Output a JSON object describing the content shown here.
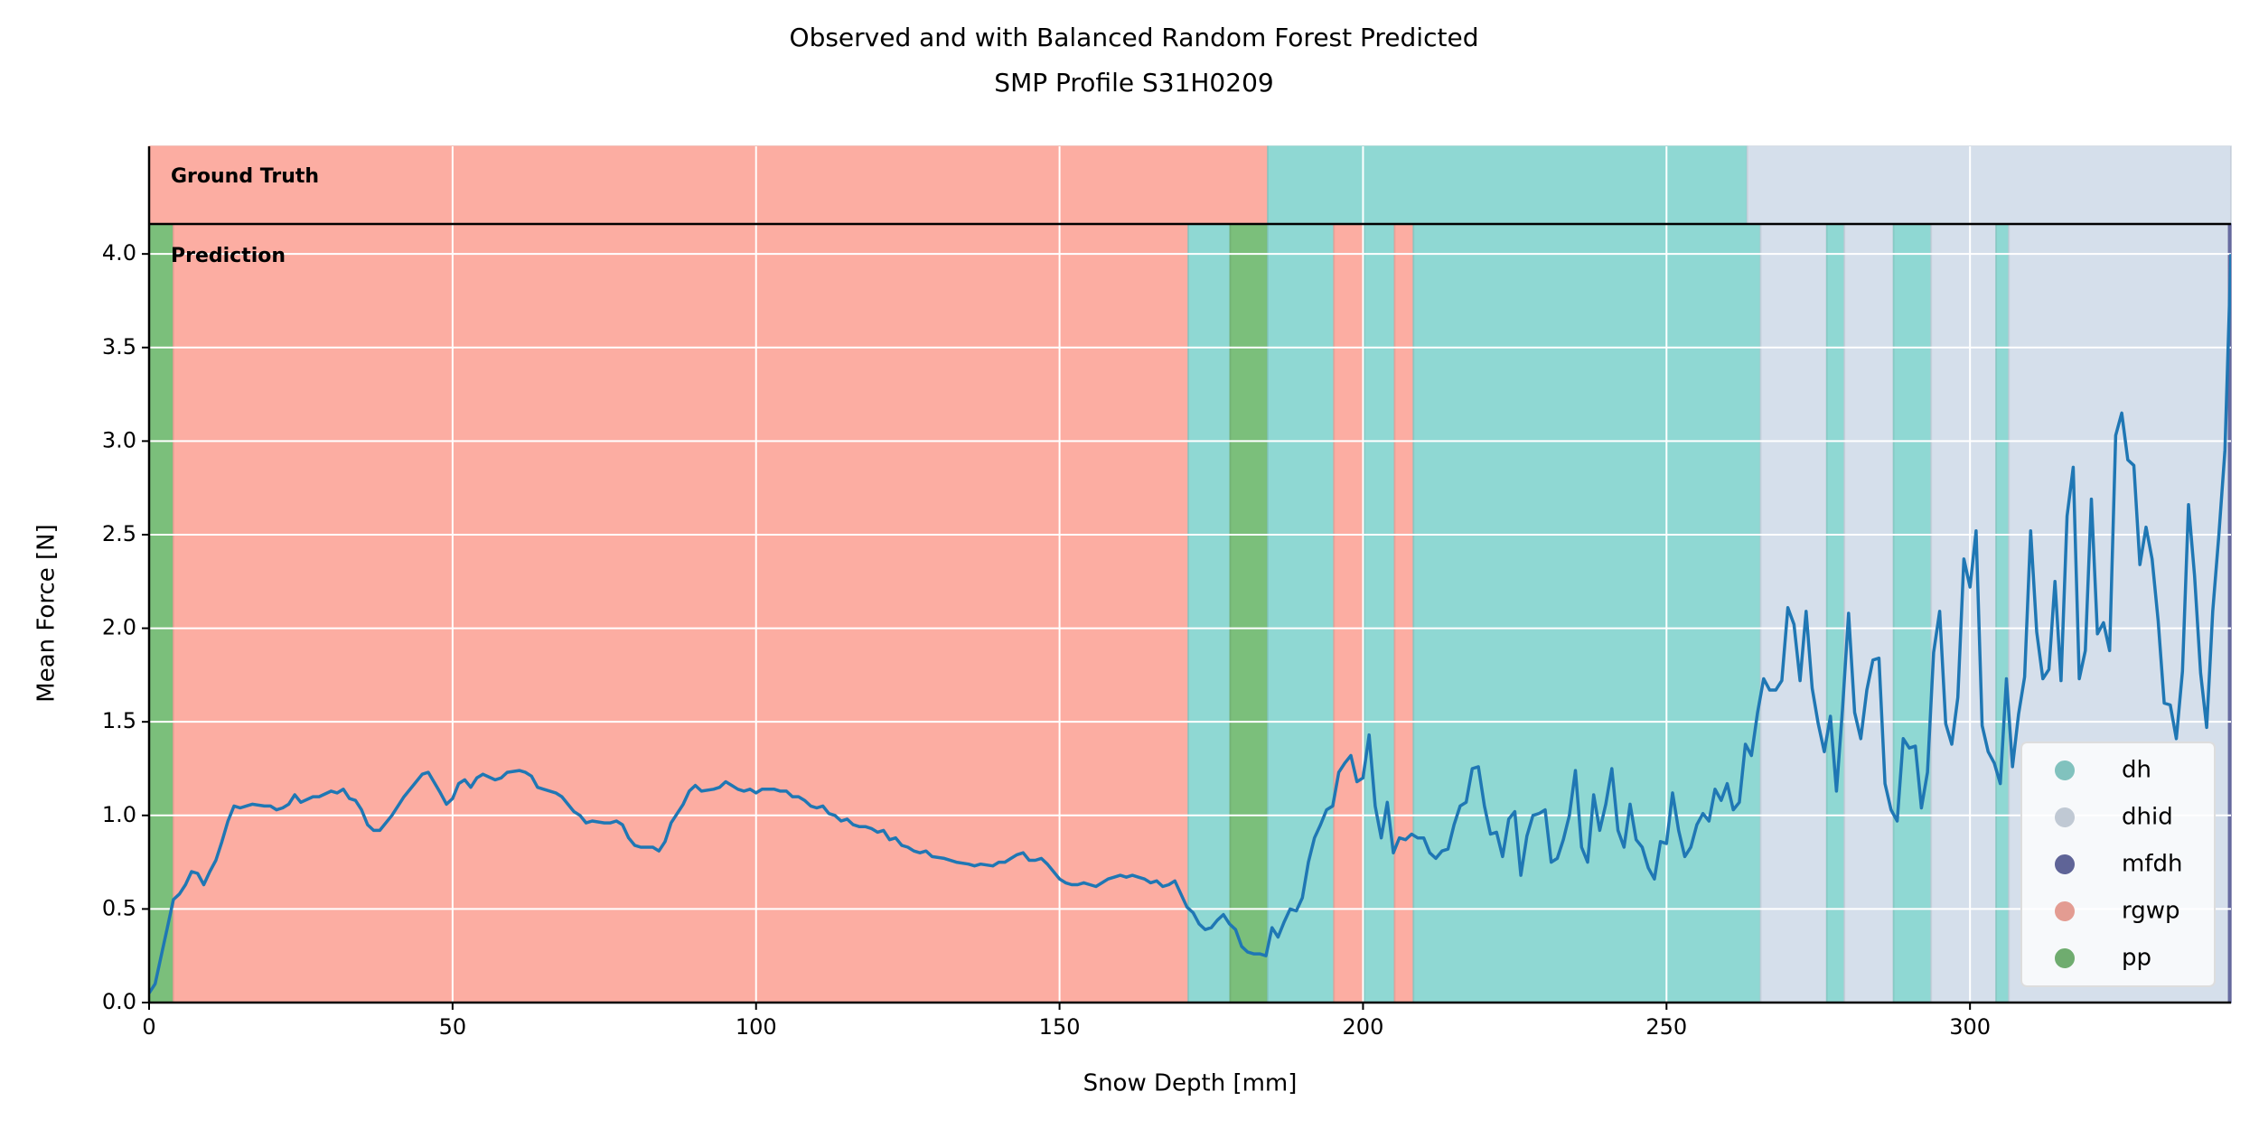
{
  "chart_data": {
    "type": "line",
    "title": [
      "Observed and with Balanced Random Forest Predicted",
      "SMP Profile S31H0209"
    ],
    "x_label": "Snow Depth [mm]",
    "y_label": "Mean Force [N]",
    "panel_labels": [
      "Ground Truth",
      "Prediction"
    ],
    "xlim": [
      0,
      343
    ],
    "ylim": [
      0,
      4.16
    ],
    "xticks": [
      0,
      50,
      100,
      150,
      200,
      250,
      300
    ],
    "yticks": [
      {
        "value": 0,
        "label": "0.0"
      },
      0.5,
      {
        "value": 1,
        "label": "1.0"
      },
      1.5,
      {
        "value": 2,
        "label": "2.0"
      },
      2.5,
      {
        "value": 3,
        "label": "3.0"
      },
      3.5,
      {
        "value": 4,
        "label": "4.0"
      }
    ],
    "grid": true,
    "grid_color": "#ffffff",
    "legend_loc": "lower right",
    "line_color": "#1f77b4",
    "classes": [
      {
        "name": "dh",
        "color": "#8fd8d3"
      },
      {
        "name": "dhid",
        "color": "#d5dfeb"
      },
      {
        "name": "mfdh",
        "color": "#6a6fa8"
      },
      {
        "name": "rgwp",
        "color": "#fcada2"
      },
      {
        "name": "pp",
        "color": "#7bbf7b"
      }
    ],
    "ground_truth": [
      {
        "class": 3,
        "start": 0,
        "end": 184.3
      },
      {
        "class": 0,
        "start": 184.3,
        "end": 263.3
      },
      {
        "class": 1,
        "start": 263.3,
        "end": 343
      }
    ],
    "prediction": [
      {
        "class": 4,
        "start": 0,
        "end": 4
      },
      {
        "class": 3,
        "start": 4,
        "end": 171.2
      },
      {
        "class": 0,
        "start": 171.2,
        "end": 178.1
      },
      {
        "class": 4,
        "start": 178.1,
        "end": 184.3
      },
      {
        "class": 0,
        "start": 184.3,
        "end": 195.2
      },
      {
        "class": 3,
        "start": 195.2,
        "end": 200.2
      },
      {
        "class": 0,
        "start": 200.2,
        "end": 205.2
      },
      {
        "class": 3,
        "start": 205.2,
        "end": 208.3
      },
      {
        "class": 0,
        "start": 208.3,
        "end": 265.5
      },
      {
        "class": 1,
        "start": 265.5,
        "end": 276.4
      },
      {
        "class": 0,
        "start": 276.4,
        "end": 279.3
      },
      {
        "class": 1,
        "start": 279.3,
        "end": 287.4
      },
      {
        "class": 0,
        "start": 287.4,
        "end": 293.6
      },
      {
        "class": 1,
        "start": 293.6,
        "end": 304.3
      },
      {
        "class": 0,
        "start": 304.3,
        "end": 306.4
      },
      {
        "class": 1,
        "start": 306.4,
        "end": 342.6
      },
      {
        "class": 2,
        "start": 342.6,
        "end": 343
      }
    ],
    "x": [
      0,
      1,
      2,
      3,
      4,
      5,
      6,
      7,
      8,
      9,
      10,
      11,
      12,
      13,
      14,
      15,
      16,
      17,
      19,
      20,
      21,
      22,
      23,
      24,
      25,
      27,
      28,
      30,
      31,
      32,
      33,
      34,
      35,
      36,
      37,
      38,
      40,
      42,
      44,
      45,
      46,
      48,
      49,
      50,
      51,
      52,
      53,
      54,
      55,
      57,
      58,
      59,
      61,
      62,
      63,
      64,
      65,
      67,
      68,
      69,
      70,
      71,
      72,
      73,
      75,
      76,
      77,
      78,
      79,
      80,
      81,
      83,
      84,
      85,
      86,
      88,
      89,
      90,
      91,
      93,
      94,
      95,
      96,
      97,
      98,
      99,
      100,
      101,
      103,
      104,
      105,
      106,
      107,
      108,
      109,
      110,
      111,
      112,
      113,
      114,
      115,
      116,
      117,
      118,
      119,
      120,
      121,
      122,
      123,
      124,
      125,
      126,
      127,
      128,
      129,
      131,
      133,
      135,
      136,
      137,
      139,
      140,
      141,
      142,
      143,
      144,
      145,
      146,
      147,
      148,
      149,
      150,
      151,
      152,
      153,
      154,
      155,
      156,
      157,
      158,
      159,
      160,
      161,
      162,
      163,
      164,
      165,
      166,
      167,
      168,
      169,
      170,
      171,
      172,
      173,
      174,
      175,
      176,
      177,
      178,
      179,
      180,
      181,
      182,
      183,
      184,
      185,
      186,
      187,
      188,
      189,
      190,
      191,
      192,
      193,
      194,
      195,
      196,
      197,
      198,
      199,
      200,
      201,
      202,
      203,
      204,
      205,
      206,
      207,
      208,
      209,
      210,
      211,
      212,
      213,
      214,
      215,
      216,
      217,
      218,
      219,
      220,
      221,
      222,
      223,
      224,
      225,
      226,
      227,
      228,
      229,
      230,
      231,
      232,
      233,
      234,
      235,
      236,
      237,
      238,
      239,
      240,
      241,
      242,
      243,
      244,
      245,
      246,
      247,
      248,
      249,
      250,
      251,
      252,
      253,
      254,
      255,
      256,
      257,
      258,
      259,
      260,
      261,
      262,
      263,
      264,
      265,
      266,
      267,
      268,
      269,
      270,
      271,
      272,
      273,
      274,
      275,
      276,
      277,
      278,
      279,
      280,
      281,
      282,
      283,
      284,
      285,
      286,
      287,
      288,
      289,
      290,
      291,
      292,
      293,
      294,
      295,
      296,
      297,
      298,
      299,
      300,
      301,
      302,
      303,
      304,
      305,
      306,
      307,
      308,
      309,
      310,
      311,
      312,
      313,
      314,
      315,
      316,
      317,
      318,
      319,
      320,
      321,
      322,
      323,
      324,
      325,
      326,
      327,
      328,
      329,
      330,
      331,
      332,
      333,
      334,
      335,
      336,
      337,
      338,
      339,
      340,
      341,
      342,
      343
    ],
    "values": [
      0.05,
      0.1,
      0.25,
      0.4,
      0.55,
      0.58,
      0.63,
      0.7,
      0.69,
      0.63,
      0.7,
      0.76,
      0.86,
      0.97,
      1.05,
      1.04,
      1.05,
      1.06,
      1.05,
      1.05,
      1.03,
      1.04,
      1.06,
      1.11,
      1.07,
      1.1,
      1.1,
      1.13,
      1.12,
      1.14,
      1.09,
      1.08,
      1.03,
      0.95,
      0.92,
      0.92,
      1.0,
      1.1,
      1.18,
      1.22,
      1.23,
      1.12,
      1.06,
      1.09,
      1.17,
      1.19,
      1.15,
      1.2,
      1.22,
      1.19,
      1.2,
      1.23,
      1.24,
      1.23,
      1.21,
      1.15,
      1.14,
      1.12,
      1.1,
      1.06,
      1.02,
      1.0,
      0.96,
      0.97,
      0.96,
      0.96,
      0.97,
      0.95,
      0.88,
      0.84,
      0.83,
      0.83,
      0.81,
      0.86,
      0.96,
      1.06,
      1.13,
      1.16,
      1.13,
      1.14,
      1.15,
      1.18,
      1.16,
      1.14,
      1.13,
      1.14,
      1.12,
      1.14,
      1.14,
      1.13,
      1.13,
      1.1,
      1.1,
      1.08,
      1.05,
      1.04,
      1.05,
      1.01,
      1.0,
      0.97,
      0.98,
      0.95,
      0.94,
      0.94,
      0.93,
      0.91,
      0.92,
      0.87,
      0.88,
      0.84,
      0.83,
      0.81,
      0.8,
      0.81,
      0.78,
      0.77,
      0.75,
      0.74,
      0.73,
      0.74,
      0.73,
      0.75,
      0.75,
      0.77,
      0.79,
      0.8,
      0.76,
      0.76,
      0.77,
      0.74,
      0.7,
      0.66,
      0.64,
      0.63,
      0.63,
      0.64,
      0.63,
      0.62,
      0.64,
      0.66,
      0.67,
      0.68,
      0.67,
      0.68,
      0.67,
      0.66,
      0.64,
      0.65,
      0.62,
      0.63,
      0.65,
      0.58,
      0.51,
      0.48,
      0.42,
      0.39,
      0.4,
      0.44,
      0.47,
      0.42,
      0.39,
      0.3,
      0.27,
      0.26,
      0.26,
      0.25,
      0.4,
      0.35,
      0.43,
      0.5,
      0.49,
      0.56,
      0.75,
      0.88,
      0.95,
      1.03,
      1.05,
      1.23,
      1.28,
      1.32,
      1.18,
      1.2,
      1.43,
      1.05,
      0.88,
      1.07,
      0.8,
      0.88,
      0.87,
      0.9,
      0.88,
      0.88,
      0.8,
      0.77,
      0.81,
      0.82,
      0.95,
      1.05,
      1.07,
      1.25,
      1.26,
      1.05,
      0.9,
      0.91,
      0.78,
      0.98,
      1.02,
      0.68,
      0.89,
      1.0,
      1.01,
      1.03,
      0.75,
      0.77,
      0.87,
      1.0,
      1.24,
      0.83,
      0.75,
      1.11,
      0.92,
      1.06,
      1.25,
      0.92,
      0.83,
      1.06,
      0.87,
      0.83,
      0.72,
      0.66,
      0.86,
      0.85,
      1.12,
      0.92,
      0.78,
      0.83,
      0.95,
      1.01,
      0.97,
      1.14,
      1.08,
      1.17,
      1.03,
      1.07,
      1.38,
      1.32,
      1.55,
      1.73,
      1.67,
      1.67,
      1.72,
      2.11,
      2.02,
      1.72,
      2.09,
      1.68,
      1.49,
      1.34,
      1.53,
      1.13,
      1.57,
      2.08,
      1.55,
      1.41,
      1.67,
      1.83,
      1.84,
      1.17,
      1.03,
      0.97,
      1.41,
      1.36,
      1.37,
      1.04,
      1.23,
      1.87,
      2.09,
      1.49,
      1.38,
      1.63,
      2.37,
      2.22,
      2.52,
      1.48,
      1.34,
      1.28,
      1.17,
      1.73,
      1.26,
      1.54,
      1.74,
      2.52,
      1.98,
      1.73,
      1.78,
      2.25,
      1.72,
      2.6,
      2.86,
      1.73,
      1.88,
      2.69,
      1.97,
      2.03,
      1.88,
      3.03,
      3.15,
      2.9,
      2.87,
      2.34,
      2.54,
      2.37,
      2.04,
      1.6,
      1.59,
      1.41,
      1.77,
      2.66,
      2.28,
      1.76,
      1.47,
      2.09,
      2.5,
      2.95,
      4.0
    ]
  }
}
